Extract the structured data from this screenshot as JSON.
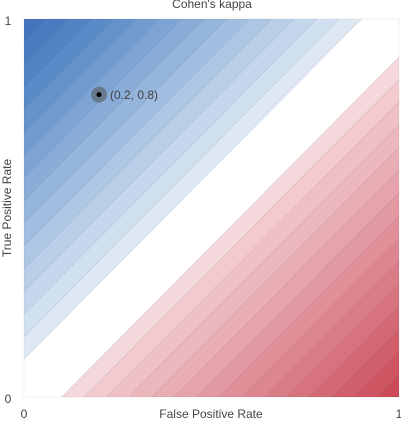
{
  "chart_data": {
    "type": "contour",
    "title": "Cohen's kappa",
    "x_label": "False Positive Rate",
    "y_label": "True Positive Rate",
    "xlim": [
      0,
      1
    ],
    "ylim": [
      0,
      1
    ],
    "xticks": [
      0,
      1
    ],
    "yticks": [
      0,
      1
    ],
    "levels": [
      -1,
      -0.94,
      -0.88,
      -0.82,
      -0.76,
      -0.7,
      -0.64,
      -0.58,
      -0.52,
      -0.46,
      -0.4,
      -0.34,
      -0.28,
      -0.22,
      -0.16,
      -0.1,
      0.1,
      0.16,
      0.22,
      0.28,
      0.34,
      0.4,
      0.46,
      0.52,
      0.58,
      0.64,
      0.7,
      0.76,
      0.82,
      0.88,
      0.94,
      1
    ],
    "colors": [
      "#cb4b58",
      "#ce5562",
      "#d15f6b",
      "#d46975",
      "#d7727e",
      "#da7c87",
      "#dd8690",
      "#e08f99",
      "#e399a2",
      "#e6a3ab",
      "#e9adb4",
      "#ecb7bd",
      "#efc1c6",
      "#f2cbcf",
      "#f5d8dc",
      "#ffffff",
      "#dde8f3",
      "#d1e0f0",
      "#c5d7ec",
      "#b9cfe8",
      "#adc6e4",
      "#a1bee0",
      "#95b5dc",
      "#89add8",
      "#7da4d4",
      "#719cd0",
      "#6593cc",
      "#598bc8",
      "#5182c4",
      "#4a7bc0",
      "#4474bc"
    ],
    "point": {
      "x": 0.2,
      "y": 0.8,
      "label": "(0.2, 0.8)"
    }
  }
}
